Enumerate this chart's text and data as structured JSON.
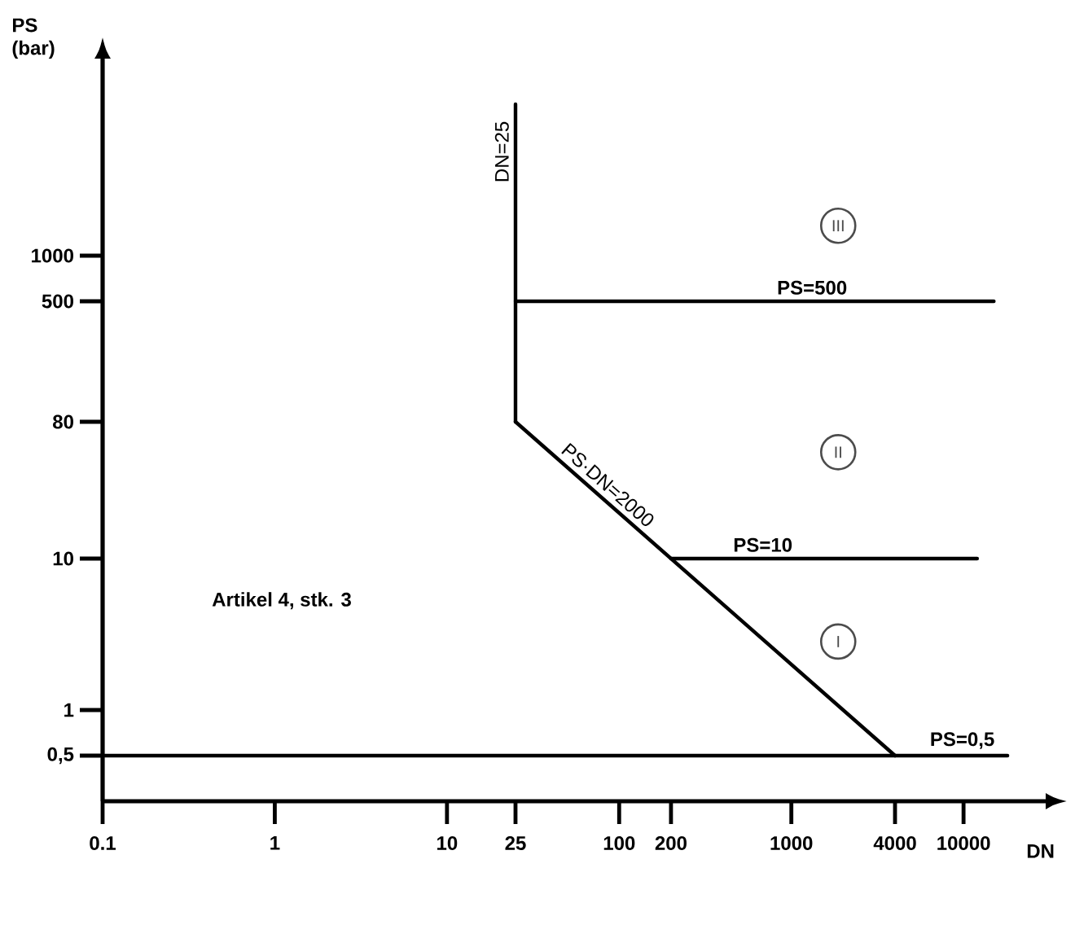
{
  "chart_data": {
    "type": "line",
    "log": "xy",
    "xlabel": "DN",
    "ylabel": "PS (bar)",
    "xlim": [
      0.1,
      30000
    ],
    "ylim": [
      0.25,
      20000
    ],
    "xticks": [
      0.1,
      1,
      10,
      25,
      100,
      200,
      1000,
      4000,
      10000
    ],
    "yticks": [
      {
        "value": 0.5,
        "label": "0,5"
      },
      1,
      10,
      80,
      500,
      1000
    ],
    "marker": "none",
    "line_style": "solid",
    "series": [
      {
        "name": "DN=25",
        "color": "#000000",
        "x": [
          25,
          25
        ],
        "values": [
          80,
          10000
        ]
      },
      {
        "name": "PS·DN=2000",
        "color": "#000000",
        "x": [
          25,
          4000
        ],
        "values": [
          80,
          0.5
        ]
      },
      {
        "name": "PS=500",
        "color": "#000000",
        "x": [
          25,
          15000
        ],
        "values": [
          500,
          500
        ]
      },
      {
        "name": "PS=10",
        "color": "#000000",
        "x": [
          200,
          12000
        ],
        "values": [
          10,
          10
        ]
      },
      {
        "name": "PS=0,5",
        "color": "#000000",
        "x": [
          0.1,
          18000
        ],
        "values": [
          0.5,
          0.5
        ]
      }
    ],
    "annotations": [
      "III",
      "II",
      "I",
      "Artikel 4, stk. 3"
    ]
  }
}
